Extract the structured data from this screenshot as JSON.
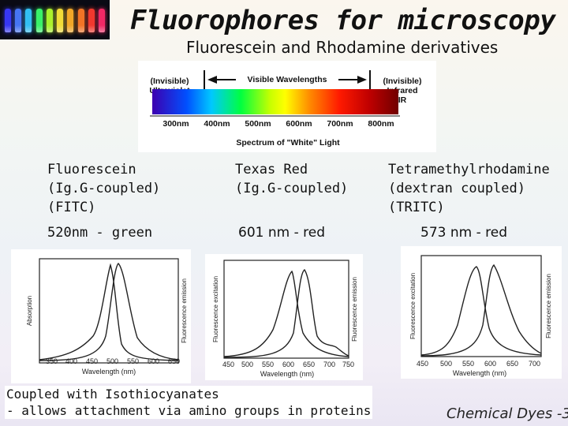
{
  "title": "Fluorophores for microscopy",
  "subtitle": "Fluorescein and Rhodamine derivatives",
  "vial_colors": [
    "#3a3aff",
    "#4a7bff",
    "#35c9ff",
    "#3cff6e",
    "#b4ff2e",
    "#ffe83a",
    "#ffb02a",
    "#ff7a28",
    "#ff3b30",
    "#ff2a6a"
  ],
  "spectrum": {
    "left_label": "(Invisible)\nUltraviolet\nUV",
    "right_label": "(Invisible)\nInfrared\nIR",
    "center_label": "Visible Wavelengths",
    "ticks": [
      "300nm",
      "400nm",
      "500nm",
      "600nm",
      "700nm",
      "800nm"
    ],
    "caption": "Spectrum of \"White\" Light"
  },
  "dyes": [
    {
      "name_lines": [
        "Fluorescein",
        "(Ig.G-coupled)",
        "(FITC)"
      ],
      "wavelength": "520nm - green"
    },
    {
      "name_lines": [
        "Texas Red",
        "(Ig.G-coupled)"
      ],
      "wavelength": "601 nm - red"
    },
    {
      "name_lines": [
        "Tetramethylrhodamine",
        "(dextran coupled)",
        "(TRITC)"
      ],
      "wavelength": "573 nm - red"
    }
  ],
  "plots": [
    {
      "xticks": [
        "350",
        "400",
        "450",
        "500",
        "550",
        "600",
        "650"
      ],
      "xlabel": "Wavelength (nm)",
      "left_ylabel": "Absorption",
      "right_ylabel": "Fluorescence emission"
    },
    {
      "xticks": [
        "450",
        "500",
        "550",
        "600",
        "650",
        "700",
        "750"
      ],
      "xlabel": "Wavelength (nm)",
      "left_ylabel": "Fluorescence excitation",
      "right_ylabel": "Fluorescence emission"
    },
    {
      "xticks": [
        "450",
        "500",
        "550",
        "600",
        "650",
        "700"
      ],
      "xlabel": "Wavelength (nm)",
      "left_ylabel": "Fluorescence excitation",
      "right_ylabel": "Fluorescence emission"
    }
  ],
  "footer_note": [
    "Coupled with Isothiocyanates",
    "- allows attachment via amino groups in proteins"
  ],
  "slide_label": "Chemical Dyes -3"
}
